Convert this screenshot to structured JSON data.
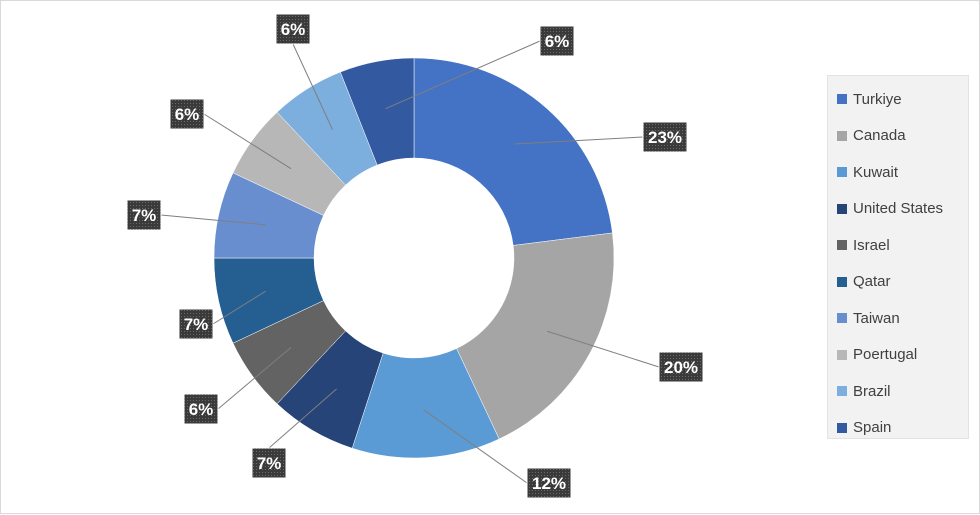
{
  "chart_data": {
    "type": "pie",
    "variant": "donut",
    "title": "",
    "categories": [
      "Turkiye",
      "Canada",
      "Kuwait",
      "United States",
      "Israel",
      "Qatar",
      "Taiwan",
      "Poertugal",
      "Brazil",
      "Spain"
    ],
    "values": [
      23,
      20,
      12,
      7,
      6,
      7,
      7,
      6,
      6,
      6
    ],
    "data_labels": [
      "23%",
      "20%",
      "12%",
      "7%",
      "6%",
      "7%",
      "7%",
      "6%",
      "6%",
      "6%"
    ],
    "colors": [
      "#4472c4",
      "#a5a5a5",
      "#5b9bd5",
      "#264478",
      "#636363",
      "#255e91",
      "#698ed0",
      "#b7b7b7",
      "#7cafdd",
      "#335aa1"
    ],
    "legend_position": "right"
  }
}
